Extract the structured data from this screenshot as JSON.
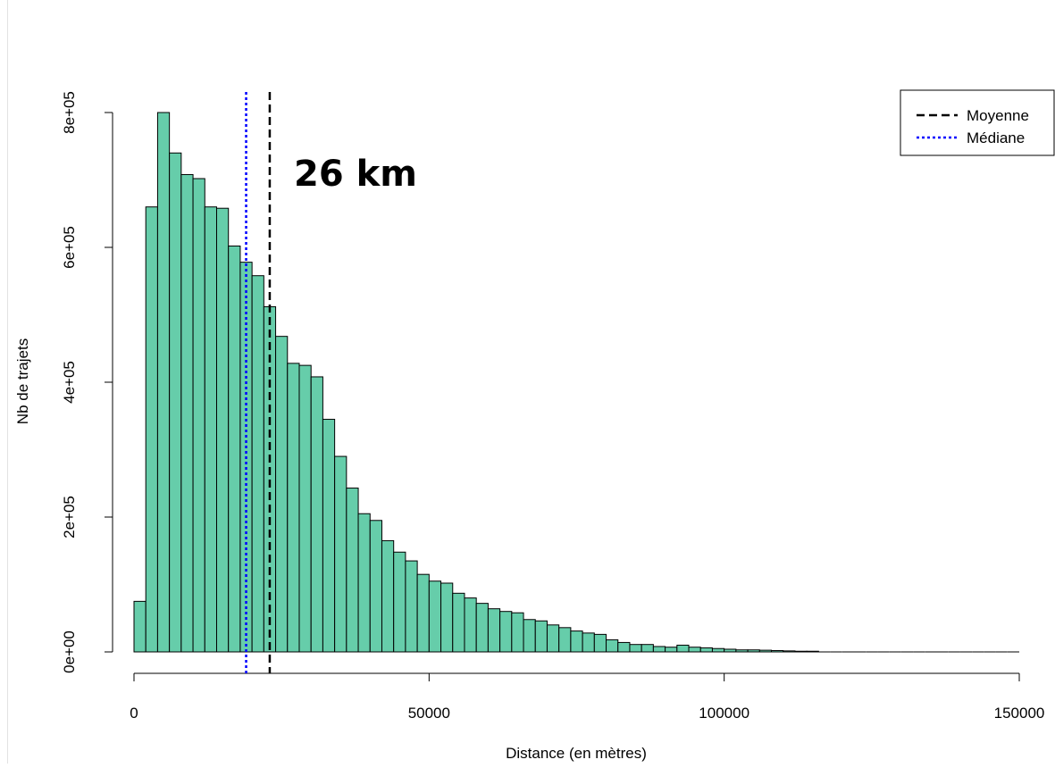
{
  "chart_data": {
    "type": "bar",
    "xlabel": "Distance (en mètres)",
    "ylabel": "Nb de trajets",
    "xlim": [
      0,
      150000
    ],
    "ylim": [
      0,
      800000
    ],
    "x_ticks": [
      "0",
      "50000",
      "100000",
      "150000"
    ],
    "x_tick_values": [
      0,
      50000,
      100000,
      150000
    ],
    "y_ticks": [
      "0e+00",
      "2e+05",
      "4e+05",
      "6e+05",
      "8e+05"
    ],
    "y_tick_values": [
      0,
      200000,
      400000,
      600000,
      800000
    ],
    "bin_width": 2000,
    "bin_start": 0,
    "values": [
      75000,
      660000,
      800000,
      740000,
      708000,
      702000,
      660000,
      658000,
      602000,
      578000,
      558000,
      512000,
      468000,
      428000,
      425000,
      408000,
      345000,
      290000,
      243000,
      205000,
      195000,
      165000,
      148000,
      135000,
      115000,
      105000,
      102000,
      87000,
      80000,
      72000,
      64000,
      60000,
      58000,
      48000,
      46000,
      40000,
      36000,
      31000,
      28000,
      26000,
      18000,
      14000,
      11000,
      11000,
      8000,
      7000,
      10000,
      7000,
      6000,
      5000,
      4000,
      3000,
      3000,
      2500,
      2000,
      1500,
      1000,
      1000,
      0,
      0,
      0,
      0,
      0,
      0,
      0,
      0,
      0,
      0,
      0,
      0,
      0,
      0,
      0,
      0,
      0
    ],
    "bar_color": "#66CDAA",
    "vlines": [
      {
        "name": "Moyenne",
        "x": 23000,
        "color": "#000000",
        "style": "dashed"
      },
      {
        "name": "Médiane",
        "x": 19000,
        "color": "#0000FF",
        "style": "dotted"
      }
    ],
    "legend_position": "top-right",
    "annotation": "26 km"
  }
}
